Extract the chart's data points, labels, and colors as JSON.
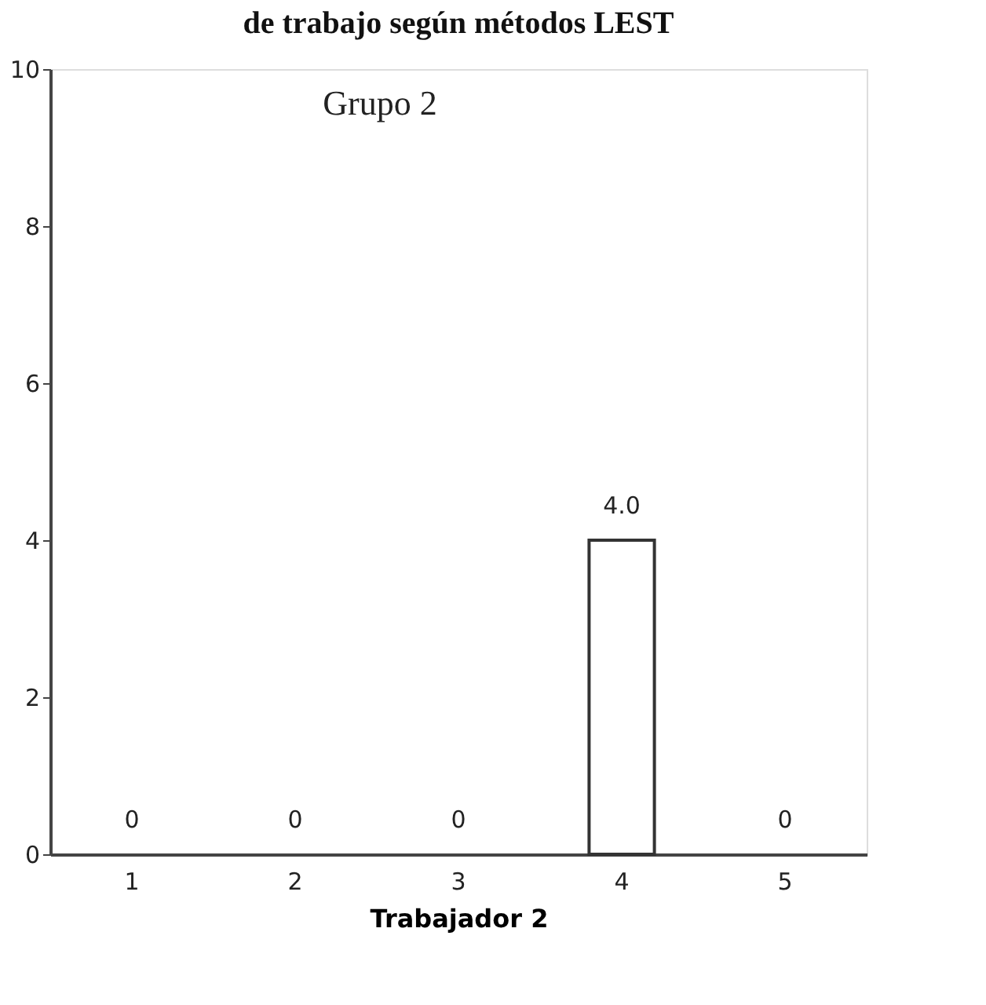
{
  "chart_data": {
    "type": "bar",
    "title": "de trabajo según métodos LEST",
    "xlabel": "Trabajador 2",
    "categories": [
      "1",
      "2",
      "3",
      "4",
      "5"
    ],
    "values": [
      0,
      0,
      0,
      4,
      0
    ],
    "color": "#ffffff",
    "value_labels": [
      "0",
      "0",
      "0",
      "4.0",
      "0"
    ],
    "annotations": [
      "Grupo 2"
    ],
    "ylim": [
      0,
      10
    ],
    "yticks": [
      0,
      2,
      4,
      6,
      8,
      10
    ],
    "grid": false
  }
}
